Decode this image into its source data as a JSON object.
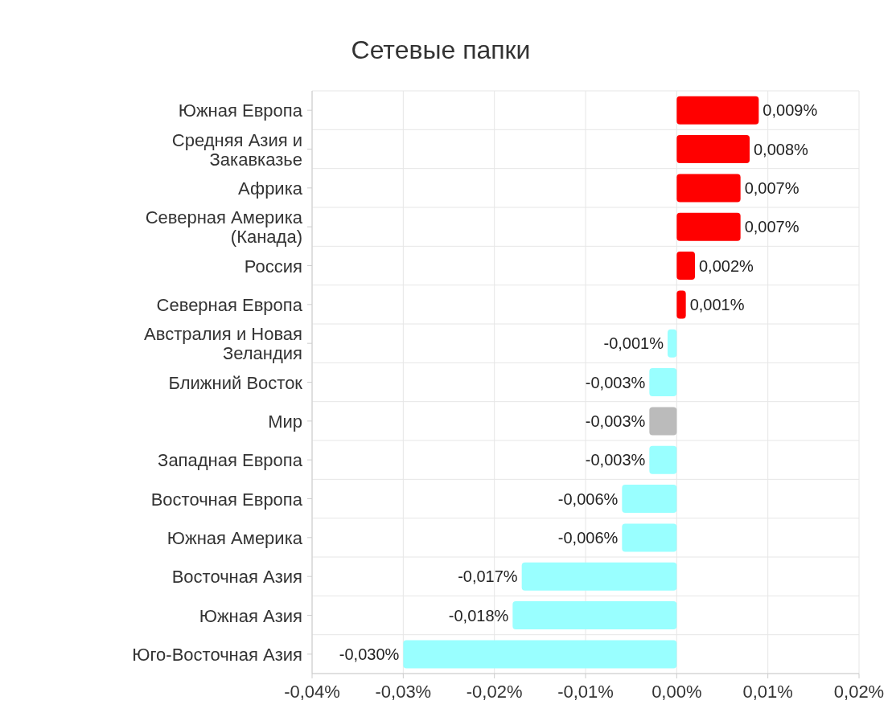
{
  "chart_data": {
    "type": "bar",
    "orientation": "horizontal",
    "title": "Сетевые папки",
    "categories": [
      "Южная Европа",
      "Средняя Азия и Закавказье",
      "Африка",
      "Северная Америка (Канада)",
      "Россия",
      "Северная Европа",
      "Австралия и Новая Зеландия",
      "Ближний Восток",
      "Мир",
      "Западная Европа",
      "Восточная Европа",
      "Южная Америка",
      "Восточная Азия",
      "Южная Азия",
      "Юго-Восточная Азия"
    ],
    "values": [
      0.009,
      0.008,
      0.007,
      0.007,
      0.002,
      0.001,
      -0.001,
      -0.003,
      -0.003,
      -0.003,
      -0.006,
      -0.006,
      -0.017,
      -0.018,
      -0.03
    ],
    "value_labels": [
      "0,009%",
      "0,008%",
      "0,007%",
      "0,007%",
      "0,002%",
      "0,001%",
      "-0,001%",
      "-0,003%",
      "-0,003%",
      "-0,003%",
      "-0,006%",
      "-0,006%",
      "-0,017%",
      "-0,018%",
      "-0,030%"
    ],
    "colors": [
      "#ff0000",
      "#ff0000",
      "#ff0000",
      "#ff0000",
      "#ff0000",
      "#ff0000",
      "#99ffff",
      "#99ffff",
      "#bbbbbb",
      "#99ffff",
      "#99ffff",
      "#99ffff",
      "#99ffff",
      "#99ffff",
      "#99ffff"
    ],
    "xlim": [
      -0.04,
      0.02
    ],
    "xticks": [
      {
        "value": -0.04,
        "label": "-0,04%"
      },
      {
        "value": -0.03,
        "label": "-0,03%"
      },
      {
        "value": -0.02,
        "label": "-0,02%"
      },
      {
        "value": -0.01,
        "label": "-0,01%"
      },
      {
        "value": 0,
        "label": "0,00%"
      },
      {
        "value": 0.01,
        "label": "0,01%"
      },
      {
        "value": 0.02,
        "label": "0,02%"
      }
    ],
    "grid": true
  }
}
